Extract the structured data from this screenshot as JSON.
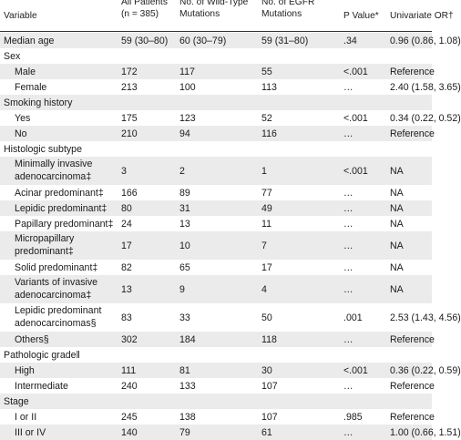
{
  "header": {
    "variable": "Variable",
    "all_patients": [
      "All Patients",
      "(n = 385)"
    ],
    "wild_type": [
      "No. of Wild-Type",
      "Mutations"
    ],
    "egfr": [
      "No. of EGFR",
      "Mutations"
    ],
    "p_value": "P Value*",
    "univariate": "Univariate OR†"
  },
  "rows": [
    {
      "label": [
        "Median age"
      ],
      "indent": false,
      "shaded": true,
      "all": "59 (30–80)",
      "wt": "60 (30–79)",
      "egfr": "59 (31–80)",
      "p": ".34",
      "or": "0.96 (0.86, 1.08)"
    },
    {
      "label": [
        "Sex"
      ],
      "indent": false,
      "shaded": false,
      "all": "",
      "wt": "",
      "egfr": "",
      "p": "",
      "or": ""
    },
    {
      "label": [
        "Male"
      ],
      "indent": true,
      "shaded": true,
      "all": "172",
      "wt": "117",
      "egfr": "55",
      "p": "<.001",
      "or": "Reference"
    },
    {
      "label": [
        "Female"
      ],
      "indent": true,
      "shaded": false,
      "all": "213",
      "wt": "100",
      "egfr": "113",
      "p": "…",
      "or": "2.40 (1.58, 3.65)"
    },
    {
      "label": [
        "Smoking history"
      ],
      "indent": false,
      "shaded": true,
      "all": "",
      "wt": "",
      "egfr": "",
      "p": "",
      "or": ""
    },
    {
      "label": [
        "Yes"
      ],
      "indent": true,
      "shaded": false,
      "all": "175",
      "wt": "123",
      "egfr": "52",
      "p": "<.001",
      "or": "0.34 (0.22, 0.52)"
    },
    {
      "label": [
        "No"
      ],
      "indent": true,
      "shaded": true,
      "all": "210",
      "wt": "94",
      "egfr": "116",
      "p": "…",
      "or": "Reference"
    },
    {
      "label": [
        "Histologic subtype"
      ],
      "indent": false,
      "shaded": false,
      "all": "",
      "wt": "",
      "egfr": "",
      "p": "",
      "or": ""
    },
    {
      "label": [
        "Minimally invasive",
        "adenocarcinoma‡"
      ],
      "indent": true,
      "shaded": true,
      "tall": true,
      "all": "3",
      "wt": "2",
      "egfr": "1",
      "p": "<.001",
      "or": "NA"
    },
    {
      "label": [
        "Acinar predominant‡"
      ],
      "indent": true,
      "shaded": false,
      "all": "166",
      "wt": "89",
      "egfr": "77",
      "p": "…",
      "or": "NA"
    },
    {
      "label": [
        "Lepidic predominant‡"
      ],
      "indent": true,
      "shaded": true,
      "all": "80",
      "wt": "31",
      "egfr": "49",
      "p": "…",
      "or": "NA"
    },
    {
      "label": [
        "Papillary predominant‡"
      ],
      "indent": true,
      "shaded": false,
      "all": "24",
      "wt": "13",
      "egfr": "11",
      "p": "…",
      "or": "NA"
    },
    {
      "label": [
        "Micropapillary",
        "predominant‡"
      ],
      "indent": true,
      "shaded": true,
      "tall": true,
      "all": "17",
      "wt": "10",
      "egfr": "7",
      "p": "…",
      "or": "NA"
    },
    {
      "label": [
        "Solid predominant‡"
      ],
      "indent": true,
      "shaded": false,
      "all": "82",
      "wt": "65",
      "egfr": "17",
      "p": "…",
      "or": "NA"
    },
    {
      "label": [
        "Variants of invasive",
        "adenocarcinoma‡"
      ],
      "indent": true,
      "shaded": true,
      "tall": true,
      "all": "13",
      "wt": "9",
      "egfr": "4",
      "p": "…",
      "or": "NA"
    },
    {
      "label": [
        "Lepidic predominant",
        "adenocarcinomas§"
      ],
      "indent": true,
      "shaded": false,
      "tall": true,
      "all": "83",
      "wt": "33",
      "egfr": "50",
      "p": ".001",
      "or": "2.53 (1.43, 4.56)"
    },
    {
      "label": [
        "Others§"
      ],
      "indent": true,
      "shaded": true,
      "all": "302",
      "wt": "184",
      "egfr": "118",
      "p": "…",
      "or": "Reference"
    },
    {
      "label": [
        "Pathologic grade‖"
      ],
      "indent": false,
      "shaded": false,
      "all": "",
      "wt": "",
      "egfr": "",
      "p": "",
      "or": ""
    },
    {
      "label": [
        "High"
      ],
      "indent": true,
      "shaded": true,
      "all": "111",
      "wt": "81",
      "egfr": "30",
      "p": "<.001",
      "or": "0.36 (0.22, 0.59)"
    },
    {
      "label": [
        "Intermediate"
      ],
      "indent": true,
      "shaded": false,
      "all": "240",
      "wt": "133",
      "egfr": "107",
      "p": "…",
      "or": "Reference"
    },
    {
      "label": [
        "Stage"
      ],
      "indent": false,
      "shaded": true,
      "all": "",
      "wt": "",
      "egfr": "",
      "p": "",
      "or": ""
    },
    {
      "label": [
        "I or II"
      ],
      "indent": true,
      "shaded": false,
      "all": "245",
      "wt": "138",
      "egfr": "107",
      "p": ".985",
      "or": "Reference"
    },
    {
      "label": [
        "III or IV"
      ],
      "indent": true,
      "shaded": true,
      "all": "140",
      "wt": "79",
      "egfr": "61",
      "p": "…",
      "or": "1.00 (0.66, 1.51)"
    }
  ]
}
